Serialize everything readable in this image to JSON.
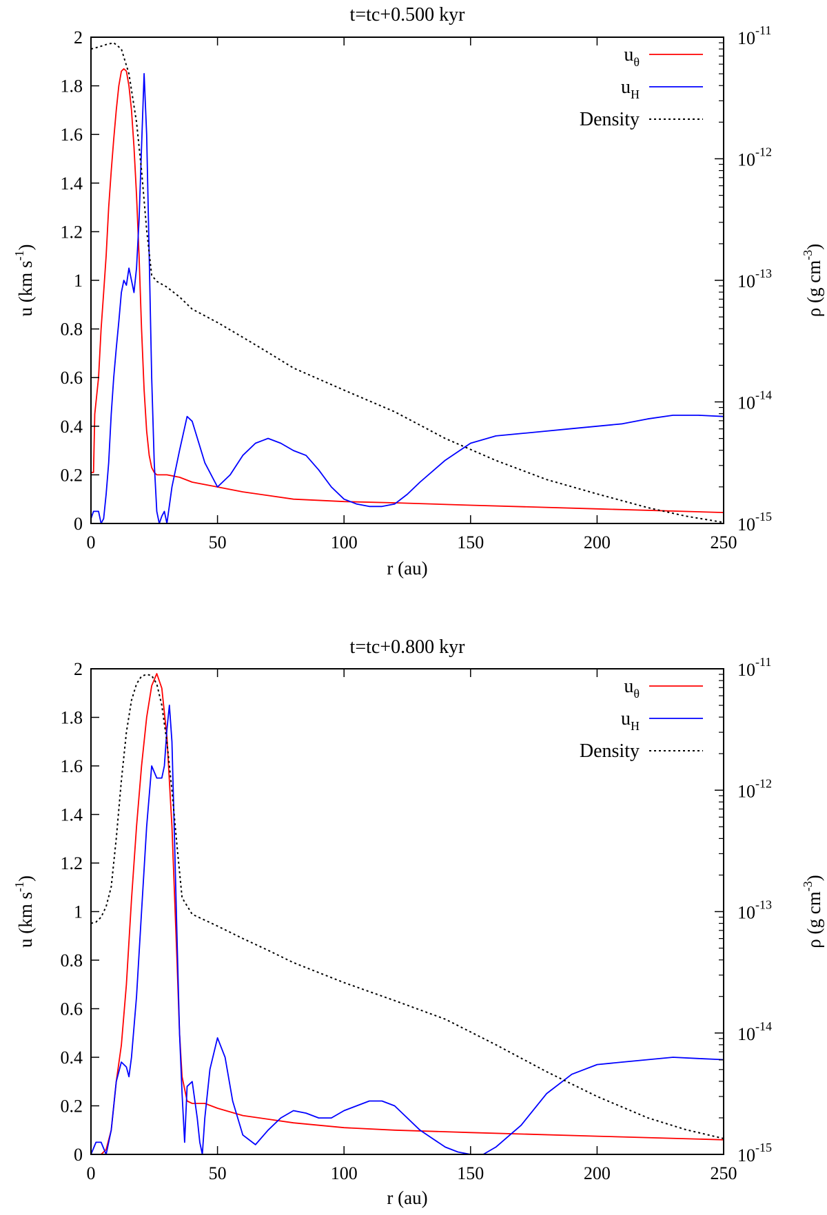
{
  "chart_data": [
    {
      "type": "line",
      "title": "t=tc+0.500 kyr",
      "xlabel": "r (au)",
      "ylabel": "u (km s",
      "ylabel_exp": "-1",
      "ylabel_close": ")",
      "y2label": "ρ (g cm",
      "y2label_exp": "-3",
      "y2label_close": ")",
      "xlim": [
        0,
        250
      ],
      "ylim": [
        0,
        2
      ],
      "y2lim": [
        1e-15,
        1e-11
      ],
      "y2scale": "log",
      "xticks": [
        "0",
        "50",
        "100",
        "150",
        "200",
        "250"
      ],
      "yticks": [
        "0",
        "0.2",
        "0.4",
        "0.6",
        "0.8",
        "1",
        "1.2",
        "1.4",
        "1.6",
        "1.8",
        "2"
      ],
      "y2ticks_mantissa": [
        "10",
        "10",
        "10",
        "10",
        "10"
      ],
      "y2ticks_exp": [
        "-15",
        "-14",
        "-13",
        "-12",
        "-11"
      ],
      "grid": false,
      "legend_position": "top-right",
      "series": [
        {
          "name": "u",
          "name_sub": "θ",
          "color": "#ff0000",
          "axis": "left",
          "dash": "solid",
          "x": [
            0,
            1,
            1.5,
            3,
            4,
            5,
            6,
            7,
            8,
            9,
            10,
            11,
            12,
            13,
            14,
            15,
            16,
            17,
            18,
            19,
            20,
            21,
            22,
            23,
            24,
            25,
            26,
            28,
            30,
            35,
            40,
            50,
            60,
            70,
            80,
            100,
            120,
            150,
            200,
            250
          ],
          "y": [
            0.21,
            0.21,
            0.45,
            0.6,
            0.8,
            0.95,
            1.1,
            1.3,
            1.45,
            1.58,
            1.7,
            1.8,
            1.86,
            1.87,
            1.86,
            1.8,
            1.7,
            1.55,
            1.35,
            1.1,
            0.8,
            0.55,
            0.38,
            0.28,
            0.23,
            0.21,
            0.2,
            0.2,
            0.2,
            0.19,
            0.17,
            0.15,
            0.13,
            0.115,
            0.1,
            0.09,
            0.085,
            0.075,
            0.06,
            0.045
          ]
        },
        {
          "name": "u",
          "name_sub": "H",
          "color": "#0000ff",
          "axis": "left",
          "dash": "solid",
          "x": [
            0,
            1,
            3,
            4,
            5,
            6,
            7,
            8,
            9,
            10,
            11,
            12,
            13,
            14,
            15,
            16,
            17,
            18,
            19,
            20,
            21,
            22,
            23,
            24,
            25,
            26,
            27,
            28,
            29,
            30,
            32,
            35,
            38,
            40,
            45,
            50,
            55,
            60,
            65,
            70,
            75,
            80,
            85,
            90,
            95,
            100,
            105,
            110,
            115,
            120,
            125,
            130,
            140,
            150,
            160,
            170,
            180,
            190,
            200,
            210,
            220,
            230,
            240,
            250
          ],
          "y": [
            0.02,
            0.05,
            0.05,
            0.0,
            0.02,
            0.12,
            0.25,
            0.45,
            0.6,
            0.72,
            0.83,
            0.95,
            1.0,
            0.98,
            1.05,
            1.0,
            0.95,
            1.05,
            1.25,
            1.55,
            1.85,
            1.6,
            1.1,
            0.6,
            0.25,
            0.05,
            0.0,
            0.03,
            0.05,
            0.0,
            0.15,
            0.3,
            0.44,
            0.42,
            0.25,
            0.15,
            0.2,
            0.28,
            0.33,
            0.35,
            0.33,
            0.3,
            0.28,
            0.22,
            0.15,
            0.1,
            0.08,
            0.07,
            0.07,
            0.08,
            0.12,
            0.17,
            0.26,
            0.33,
            0.36,
            0.37,
            0.38,
            0.39,
            0.4,
            0.41,
            0.43,
            0.445,
            0.445,
            0.44
          ]
        },
        {
          "name": "Density",
          "name_sub": "",
          "color": "#000000",
          "axis": "right",
          "dash": "dotted",
          "x": [
            0,
            3,
            6,
            9,
            12,
            15,
            18,
            20,
            22,
            24,
            26,
            30,
            35,
            40,
            50,
            60,
            70,
            80,
            100,
            120,
            140,
            160,
            180,
            200,
            220,
            235,
            250
          ],
          "y": [
            8e-12,
            8.3e-12,
            8.7e-12,
            9e-12,
            8e-12,
            5e-12,
            2e-12,
            8e-13,
            2.6e-13,
            1.1e-13,
            9.8e-14,
            8.8e-14,
            7.3e-14,
            5.8e-14,
            4.5e-14,
            3.4e-14,
            2.55e-14,
            1.9e-14,
            1.25e-14,
            8.3e-15,
            5e-15,
            3.3e-15,
            2.3e-15,
            1.75e-15,
            1.35e-15,
            1.15e-15,
            1.02e-15
          ]
        }
      ]
    },
    {
      "type": "line",
      "title": "t=tc+0.800 kyr",
      "xlabel": "r (au)",
      "ylabel": "u (km s",
      "ylabel_exp": "-1",
      "ylabel_close": ")",
      "y2label": "ρ (g cm",
      "y2label_exp": "-3",
      "y2label_close": ")",
      "xlim": [
        0,
        250
      ],
      "ylim": [
        0,
        2
      ],
      "y2lim": [
        1e-15,
        1e-11
      ],
      "y2scale": "log",
      "xticks": [
        "0",
        "50",
        "100",
        "150",
        "200",
        "250"
      ],
      "yticks": [
        "0",
        "0.2",
        "0.4",
        "0.6",
        "0.8",
        "1",
        "1.2",
        "1.4",
        "1.6",
        "1.8",
        "2"
      ],
      "y2ticks_mantissa": [
        "10",
        "10",
        "10",
        "10",
        "10"
      ],
      "y2ticks_exp": [
        "-15",
        "-14",
        "-13",
        "-12",
        "-11"
      ],
      "grid": false,
      "legend_position": "top-right",
      "series": [
        {
          "name": "u",
          "name_sub": "θ",
          "color": "#ff0000",
          "axis": "left",
          "dash": "solid",
          "x": [
            0,
            2,
            4,
            6,
            8,
            10,
            12,
            14,
            16,
            18,
            20,
            22,
            24,
            26,
            28,
            30,
            32,
            34,
            35,
            36,
            38,
            40,
            45,
            50,
            60,
            80,
            100,
            120,
            150,
            200,
            250
          ],
          "y": [
            0.0,
            0.0,
            0.0,
            0.02,
            0.1,
            0.3,
            0.45,
            0.7,
            1.05,
            1.35,
            1.6,
            1.8,
            1.93,
            1.98,
            1.92,
            1.72,
            1.35,
            0.8,
            0.5,
            0.32,
            0.22,
            0.21,
            0.21,
            0.19,
            0.16,
            0.13,
            0.11,
            0.1,
            0.09,
            0.075,
            0.06
          ]
        },
        {
          "name": "u",
          "name_sub": "H",
          "color": "#0000ff",
          "axis": "left",
          "dash": "solid",
          "x": [
            0,
            2,
            4,
            6,
            8,
            10,
            12,
            14,
            15,
            16,
            18,
            20,
            22,
            24,
            26,
            28,
            29,
            30,
            31,
            32,
            33,
            34,
            35,
            36,
            37,
            38,
            40,
            42,
            43,
            44,
            45,
            47,
            50,
            53,
            56,
            60,
            65,
            70,
            75,
            80,
            85,
            90,
            95,
            100,
            110,
            115,
            120,
            125,
            130,
            140,
            145,
            150,
            155,
            160,
            170,
            180,
            190,
            200,
            210,
            220,
            230,
            240,
            250
          ],
          "y": [
            0.0,
            0.05,
            0.05,
            0.0,
            0.1,
            0.3,
            0.38,
            0.36,
            0.32,
            0.4,
            0.65,
            1.0,
            1.35,
            1.6,
            1.55,
            1.55,
            1.6,
            1.75,
            1.85,
            1.7,
            1.3,
            0.9,
            0.5,
            0.25,
            0.05,
            0.28,
            0.3,
            0.15,
            0.05,
            0.0,
            0.15,
            0.35,
            0.48,
            0.4,
            0.22,
            0.08,
            0.04,
            0.1,
            0.15,
            0.18,
            0.17,
            0.15,
            0.15,
            0.18,
            0.22,
            0.22,
            0.2,
            0.15,
            0.1,
            0.03,
            0.01,
            0.0,
            0.0,
            0.03,
            0.12,
            0.25,
            0.33,
            0.37,
            0.38,
            0.39,
            0.4,
            0.395,
            0.39
          ]
        },
        {
          "name": "Density",
          "name_sub": "",
          "color": "#000000",
          "axis": "right",
          "dash": "dotted",
          "x": [
            0,
            2,
            4,
            6,
            8,
            10,
            12,
            14,
            16,
            18,
            20,
            22,
            24,
            26,
            28,
            30,
            32,
            34,
            36,
            40,
            50,
            60,
            70,
            80,
            100,
            120,
            140,
            160,
            180,
            200,
            220,
            235,
            250
          ],
          "y": [
            8e-14,
            8.2e-14,
            9e-14,
            1.1e-13,
            1.6e-13,
            4e-13,
            1.2e-12,
            3e-12,
            5.5e-12,
            7.5e-12,
            8.7e-12,
            9e-12,
            8.8e-12,
            7.5e-12,
            5e-12,
            2.5e-12,
            1e-12,
            3.5e-13,
            1.3e-13,
            9.5e-14,
            7.6e-14,
            6e-14,
            4.8e-14,
            3.8e-14,
            2.6e-14,
            1.85e-14,
            1.3e-14,
            8e-15,
            4.8e-15,
            3e-15,
            2e-15,
            1.6e-15,
            1.35e-15
          ]
        }
      ]
    }
  ]
}
